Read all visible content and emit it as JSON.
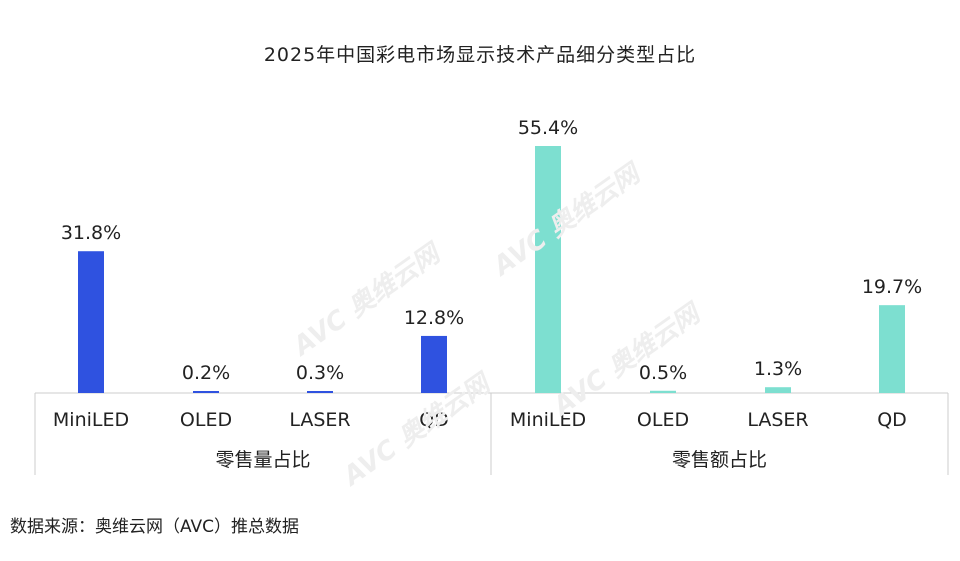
{
  "watermark": "AVC 奥维云网",
  "source": "数据来源：奥维云网（AVC）推总数据",
  "colors": {
    "volume": "#2f52e0",
    "revenue": "#7ddfd0",
    "axis": "#cccccc",
    "text": "#222222"
  },
  "chart_data": {
    "type": "bar",
    "title": "2025年中国彩电市场显示技术产品细分类型占比",
    "ylim": [
      0,
      60
    ],
    "grid": false,
    "legend": "none",
    "groups": [
      {
        "name": "零售量占比",
        "categories": [
          "MiniLED",
          "OLED",
          "LASER",
          "QD"
        ],
        "values": [
          31.8,
          0.2,
          0.3,
          12.8
        ],
        "labels": [
          "31.8%",
          "0.2%",
          "0.3%",
          "12.8%"
        ],
        "color": "#2f52e0"
      },
      {
        "name": "零售额占比",
        "categories": [
          "MiniLED",
          "OLED",
          "LASER",
          "QD"
        ],
        "values": [
          55.4,
          0.5,
          1.3,
          19.7
        ],
        "labels": [
          "55.4%",
          "0.5%",
          "1.3%",
          "19.7%"
        ],
        "color": "#7ddfd0"
      }
    ]
  }
}
